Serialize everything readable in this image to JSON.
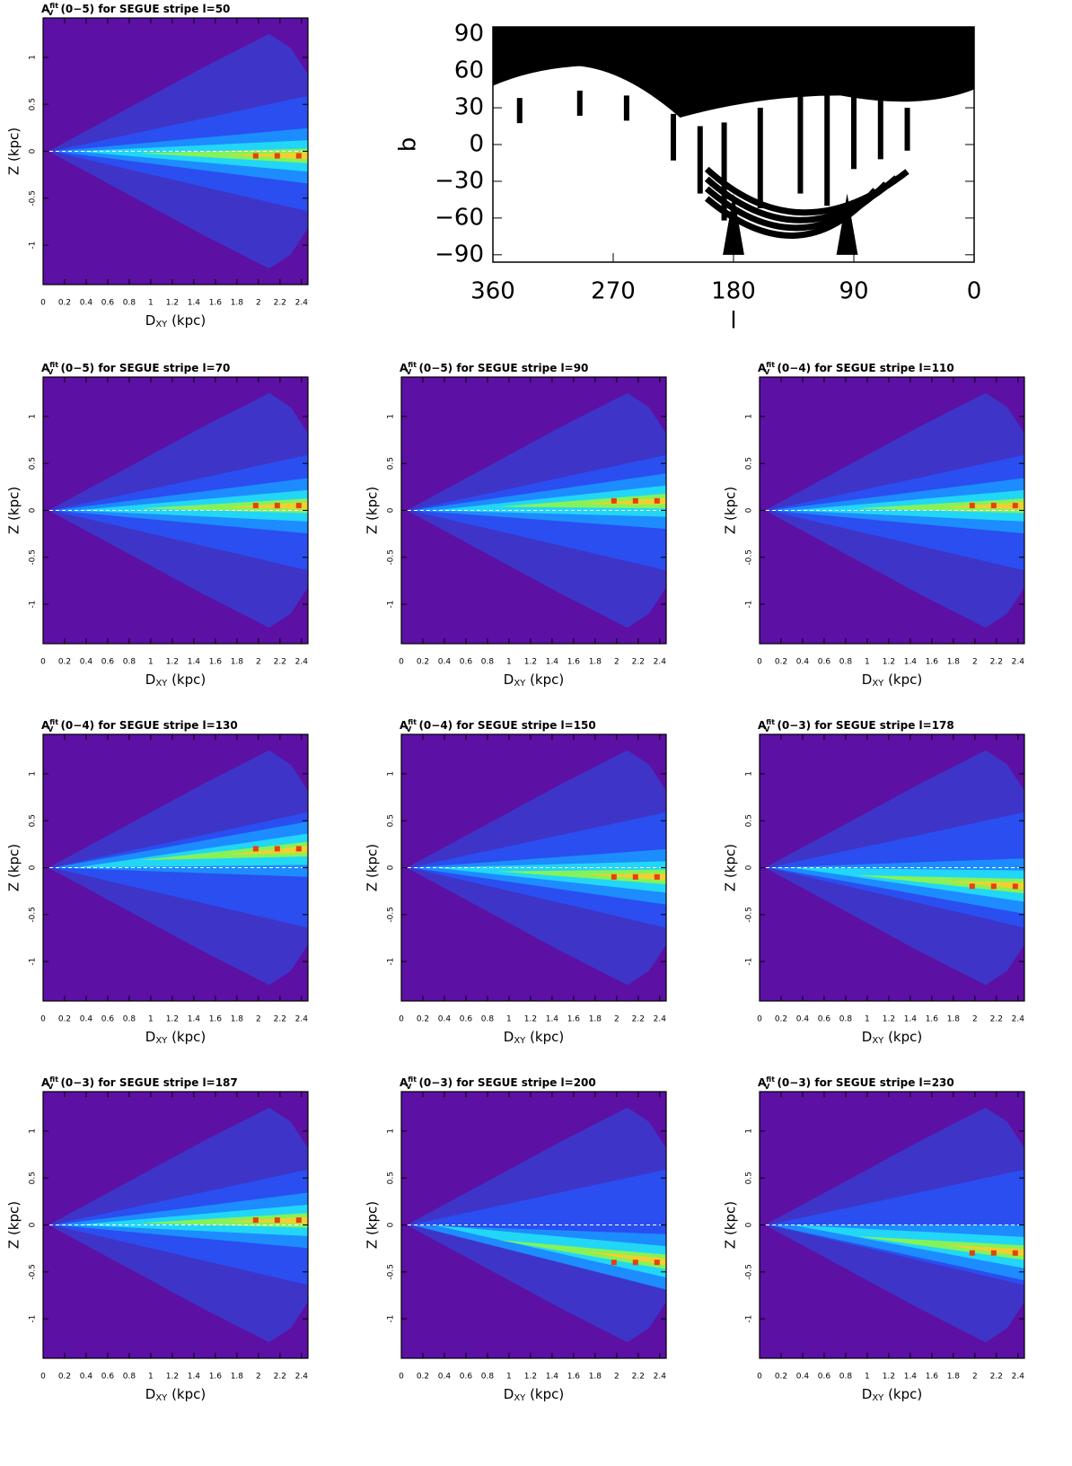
{
  "chart_data": [
    {
      "type": "heatmap",
      "title": {
        "symbol": "A",
        "sup": "fit",
        "sub": "V",
        "text": " (0−5) for SEGUE stripe l=50"
      },
      "xlabel": {
        "symbol": "D",
        "sub": "XY",
        "text": " (kpc)"
      },
      "ylabel": "Z (kpc)",
      "xlim": [
        0,
        2.46
      ],
      "ylim": [
        -1.42,
        1.42
      ],
      "xticks": [
        0,
        0.2,
        0.4,
        0.6,
        0.8,
        1,
        1.2,
        1.4,
        1.6,
        1.8,
        2,
        2.2,
        2.4
      ],
      "yticks": [
        -1,
        -0.5,
        0,
        0.5,
        1
      ],
      "background": "#5c10a4"
    },
    {
      "type": "skymap",
      "xlabel": "l",
      "ylabel": "b",
      "xlim": [
        360,
        0
      ],
      "ylim": [
        -96,
        96
      ],
      "xticks": [
        360,
        270,
        180,
        90,
        0
      ],
      "yticks": [
        90,
        60,
        30,
        0,
        {
          "value": -30,
          "label": "−30"
        },
        {
          "value": -60,
          "label": "−60"
        },
        {
          "value": -90,
          "label": "−90"
        }
      ],
      "color": "#000000"
    },
    {
      "type": "heatmap",
      "title": {
        "symbol": "A",
        "sup": "fit",
        "sub": "V",
        "text": " (0−5) for SEGUE stripe l=70"
      },
      "xlabel": {
        "symbol": "D",
        "sub": "XY",
        "text": " (kpc)"
      },
      "ylabel": "Z (kpc)",
      "xlim": [
        0,
        2.46
      ],
      "ylim": [
        -1.42,
        1.42
      ],
      "xticks": [
        0,
        0.2,
        0.4,
        0.6,
        0.8,
        1,
        1.2,
        1.4,
        1.6,
        1.8,
        2,
        2.2,
        2.4
      ],
      "yticks": [
        -1,
        -0.5,
        0,
        0.5,
        1
      ],
      "background": "#5c10a4"
    },
    {
      "type": "heatmap",
      "title": {
        "symbol": "A",
        "sup": "fit",
        "sub": "V",
        "text": " (0−5) for SEGUE stripe l=90"
      },
      "xlabel": {
        "symbol": "D",
        "sub": "XY",
        "text": " (kpc)"
      },
      "ylabel": "Z (kpc)",
      "xlim": [
        0,
        2.46
      ],
      "ylim": [
        -1.42,
        1.42
      ],
      "xticks": [
        0,
        0.2,
        0.4,
        0.6,
        0.8,
        1,
        1.2,
        1.4,
        1.6,
        1.8,
        2,
        2.2,
        2.4
      ],
      "yticks": [
        -1,
        -0.5,
        0,
        0.5,
        1
      ],
      "background": "#5c10a4"
    },
    {
      "type": "heatmap",
      "title": {
        "symbol": "A",
        "sup": "fit",
        "sub": "V",
        "text": " (0−4) for SEGUE stripe l=110"
      },
      "xlabel": {
        "symbol": "D",
        "sub": "XY",
        "text": " (kpc)"
      },
      "ylabel": "Z (kpc)",
      "xlim": [
        0,
        2.46
      ],
      "ylim": [
        -1.42,
        1.42
      ],
      "xticks": [
        0,
        0.2,
        0.4,
        0.6,
        0.8,
        1,
        1.2,
        1.4,
        1.6,
        1.8,
        2,
        2.2,
        2.4
      ],
      "yticks": [
        -1,
        -0.5,
        0,
        0.5,
        1
      ],
      "background": "#5c10a4"
    },
    {
      "type": "heatmap",
      "title": {
        "symbol": "A",
        "sup": "fit",
        "sub": "V",
        "text": " (0−4) for SEGUE stripe l=130"
      },
      "xlabel": {
        "symbol": "D",
        "sub": "XY",
        "text": " (kpc)"
      },
      "ylabel": "Z (kpc)",
      "xlim": [
        0,
        2.46
      ],
      "ylim": [
        -1.42,
        1.42
      ],
      "xticks": [
        0,
        0.2,
        0.4,
        0.6,
        0.8,
        1,
        1.2,
        1.4,
        1.6,
        1.8,
        2,
        2.2,
        2.4
      ],
      "yticks": [
        -1,
        -0.5,
        0,
        0.5,
        1
      ],
      "background": "#5c10a4"
    },
    {
      "type": "heatmap",
      "title": {
        "symbol": "A",
        "sup": "fit",
        "sub": "V",
        "text": " (0−4) for SEGUE stripe l=150"
      },
      "xlabel": {
        "symbol": "D",
        "sub": "XY",
        "text": " (kpc)"
      },
      "ylabel": "Z (kpc)",
      "xlim": [
        0,
        2.46
      ],
      "ylim": [
        -1.42,
        1.42
      ],
      "xticks": [
        0,
        0.2,
        0.4,
        0.6,
        0.8,
        1,
        1.2,
        1.4,
        1.6,
        1.8,
        2,
        2.2,
        2.4
      ],
      "yticks": [
        -1,
        -0.5,
        0,
        0.5,
        1
      ],
      "background": "#5c10a4"
    },
    {
      "type": "heatmap",
      "title": {
        "symbol": "A",
        "sup": "fit",
        "sub": "V",
        "text": " (0−3) for SEGUE stripe l=178"
      },
      "xlabel": {
        "symbol": "D",
        "sub": "XY",
        "text": " (kpc)"
      },
      "ylabel": "Z (kpc)",
      "xlim": [
        0,
        2.46
      ],
      "ylim": [
        -1.42,
        1.42
      ],
      "xticks": [
        0,
        0.2,
        0.4,
        0.6,
        0.8,
        1,
        1.2,
        1.4,
        1.6,
        1.8,
        2,
        2.2,
        2.4
      ],
      "yticks": [
        -1,
        -0.5,
        0,
        0.5,
        1
      ],
      "background": "#5c10a4"
    },
    {
      "type": "heatmap",
      "title": {
        "symbol": "A",
        "sup": "fit",
        "sub": "V",
        "text": " (0−3) for SEGUE stripe l=187"
      },
      "xlabel": {
        "symbol": "D",
        "sub": "XY",
        "text": " (kpc)"
      },
      "ylabel": "Z (kpc)",
      "xlim": [
        0,
        2.46
      ],
      "ylim": [
        -1.42,
        1.42
      ],
      "xticks": [
        0,
        0.2,
        0.4,
        0.6,
        0.8,
        1,
        1.2,
        1.4,
        1.6,
        1.8,
        2,
        2.2,
        2.4
      ],
      "yticks": [
        -1,
        -0.5,
        0,
        0.5,
        1
      ],
      "background": "#5c10a4"
    },
    {
      "type": "heatmap",
      "title": {
        "symbol": "A",
        "sup": "fit",
        "sub": "V",
        "text": " (0−3) for SEGUE stripe l=200"
      },
      "xlabel": {
        "symbol": "D",
        "sub": "XY",
        "text": " (kpc)"
      },
      "ylabel": "Z (kpc)",
      "xlim": [
        0,
        2.46
      ],
      "ylim": [
        -1.42,
        1.42
      ],
      "xticks": [
        0,
        0.2,
        0.4,
        0.6,
        0.8,
        1,
        1.2,
        1.4,
        1.6,
        1.8,
        2,
        2.2,
        2.4
      ],
      "yticks": [
        -1,
        -0.5,
        0,
        0.5,
        1
      ],
      "background": "#5c10a4"
    },
    {
      "type": "heatmap",
      "title": {
        "symbol": "A",
        "sup": "fit",
        "sub": "V",
        "text": " (0−3) for SEGUE stripe l=230"
      },
      "xlabel": {
        "symbol": "D",
        "sub": "XY",
        "text": " (kpc)"
      },
      "ylabel": "Z (kpc)",
      "xlim": [
        0,
        2.46
      ],
      "ylim": [
        -1.42,
        1.42
      ],
      "xticks": [
        0,
        0.2,
        0.4,
        0.6,
        0.8,
        1,
        1.2,
        1.4,
        1.6,
        1.8,
        2,
        2.2,
        2.4
      ],
      "yticks": [
        -1,
        -0.5,
        0,
        0.5,
        1
      ],
      "background": "#5c10a4"
    }
  ]
}
